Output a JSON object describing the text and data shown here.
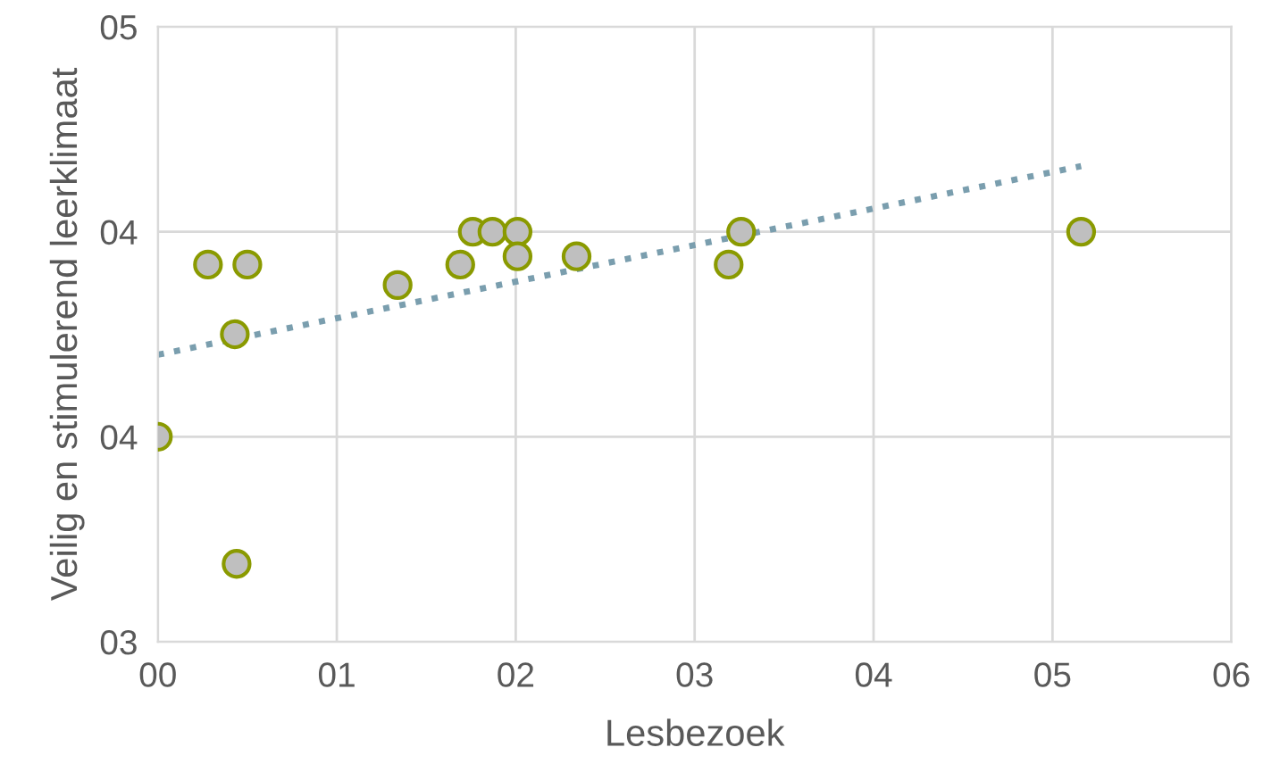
{
  "chart_data": {
    "type": "scatter",
    "xlabel": "Lesbezoek",
    "ylabel": "Veilig en stimulerend leerklimaat",
    "xlim": [
      0,
      6
    ],
    "xticks": [
      {
        "value": 0,
        "label": "00"
      },
      {
        "value": 1,
        "label": "01"
      },
      {
        "value": 2,
        "label": "02"
      },
      {
        "value": 3,
        "label": "03"
      },
      {
        "value": 4,
        "label": "04"
      },
      {
        "value": 5,
        "label": "05"
      },
      {
        "value": 6,
        "label": "06"
      }
    ],
    "ylim": [
      3.0,
      4.5
    ],
    "yticks": [
      {
        "value": 3.0,
        "label": "03"
      },
      {
        "value": 3.5,
        "label": "04"
      },
      {
        "value": 4.0,
        "label": "04"
      },
      {
        "value": 4.5,
        "label": "05"
      }
    ],
    "grid": true,
    "series": [
      {
        "marker": "circle",
        "color": "#bfbfbf",
        "x": [
          0,
          0.28,
          0.5,
          0.43,
          0.44,
          1.34,
          1.69,
          1.76,
          1.87,
          2.01,
          2.01,
          2.34,
          3.19,
          3.26,
          5.16
        ],
        "values": [
          3.5,
          3.92,
          3.92,
          3.75,
          3.19,
          3.87,
          3.92,
          4.0,
          4.0,
          4.0,
          3.94,
          3.94,
          3.92,
          4.0,
          4.0
        ]
      },
      {
        "type": "line",
        "marker": "none",
        "color": "#7a9eae",
        "line_style": "dotted",
        "x": [
          0,
          5.16
        ],
        "values": [
          3.7,
          4.16
        ]
      }
    ]
  }
}
